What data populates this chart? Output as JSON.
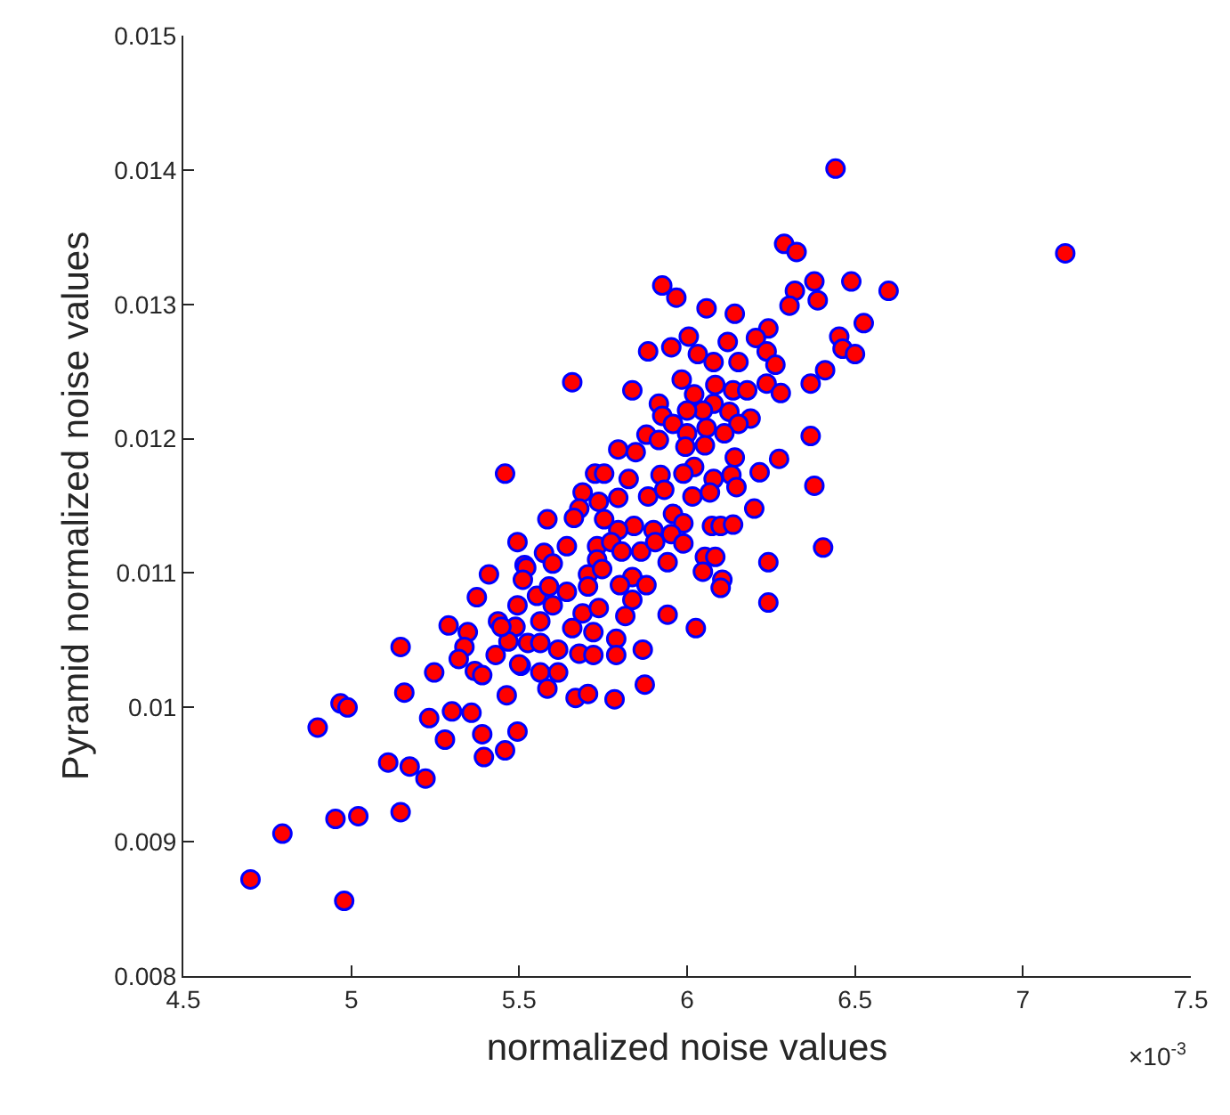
{
  "chart_data": {
    "type": "scatter",
    "xlabel": "normalized noise values",
    "ylabel": "Pyramid normalized noise values",
    "annotations": [
      "×10$^{-3}$"
    ],
    "xlim": [
      4.5,
      7.5
    ],
    "xticks": [
      4.5,
      5,
      5.5,
      6,
      6.5,
      7,
      7.5
    ],
    "ylim": [
      0.008,
      0.015
    ],
    "yticks": [
      0.008,
      0.009,
      0.01,
      0.011,
      0.012,
      0.013,
      0.014,
      0.015
    ],
    "marker": "circle",
    "series": [
      {
        "color": "#ff0000",
        "x": [
          5.458,
          5.495,
          5.41,
          5.374,
          5.29,
          5.347,
          5.337,
          5.147,
          5.32,
          5.247,
          5.368,
          5.39,
          5.43,
          5.158,
          5.463,
          4.968,
          4.989,
          4.9,
          5.232,
          5.3,
          5.358,
          5.279,
          5.39,
          5.395,
          5.458,
          5.495,
          5.11,
          5.174,
          5.221,
          5.147,
          5.021,
          4.953,
          4.795,
          4.7,
          4.979,
          5.437,
          5.489,
          5.468,
          5.505,
          5.516,
          5.495,
          6.289,
          6.326,
          5.926,
          5.968,
          6.058,
          6.142,
          6.379,
          6.321,
          6.389,
          6.305,
          6.242,
          6.205,
          6.121,
          6.005,
          5.953,
          5.884,
          6.032,
          6.079,
          6.153,
          6.237,
          6.263,
          6.453,
          6.463,
          6.411,
          6.368,
          5.658,
          5.837,
          5.984,
          6.084,
          6.137,
          6.179,
          6.237,
          6.279,
          6.021,
          6.079,
          5.916,
          6.047,
          6.126,
          6.189,
          5.926,
          6.0,
          5.958,
          6.058,
          6.153,
          5.879,
          5.916,
          6.0,
          6.111,
          6.053,
          5.995,
          5.795,
          5.847,
          6.368,
          6.142,
          6.274,
          6.021,
          5.826,
          5.726,
          5.753,
          5.921,
          5.989,
          6.079,
          6.132,
          6.216,
          6.147,
          6.379,
          5.689,
          5.795,
          5.884,
          5.932,
          6.016,
          6.068,
          5.679,
          5.737,
          5.584,
          5.663,
          5.753,
          5.842,
          5.958,
          5.989,
          6.2,
          5.795,
          5.9,
          5.953,
          6.074,
          6.1,
          6.137,
          5.642,
          5.732,
          5.774,
          5.863,
          5.905,
          5.989,
          6.405,
          5.574,
          5.732,
          5.805,
          6.053,
          6.084,
          5.521,
          5.6,
          5.705,
          5.747,
          5.837,
          5.879,
          5.942,
          6.047,
          6.105,
          6.242,
          5.511,
          5.553,
          5.589,
          5.642,
          5.705,
          5.8,
          5.837,
          6.1,
          6.242,
          5.6,
          5.689,
          5.737,
          5.816,
          5.942,
          6.026,
          5.447,
          5.563,
          5.658,
          5.721,
          5.526,
          5.616,
          5.679,
          5.789,
          5.868,
          5.563,
          5.721,
          5.789,
          5.5,
          5.563,
          5.616,
          5.584,
          5.874,
          5.668,
          5.705,
          5.784,
          6.442,
          7.126,
          6.489,
          6.6,
          6.526,
          6.5
        ],
        "values": [
          0.01174,
          0.01123,
          0.01099,
          0.01082,
          0.01061,
          0.01056,
          0.01045,
          0.01045,
          0.01036,
          0.01026,
          0.01027,
          0.01024,
          0.01039,
          0.01011,
          0.01009,
          0.01003,
          0.01,
          0.00985,
          0.00992,
          0.00997,
          0.00996,
          0.00976,
          0.0098,
          0.00963,
          0.00968,
          0.00982,
          0.00959,
          0.00956,
          0.00947,
          0.00922,
          0.00919,
          0.00917,
          0.00906,
          0.00872,
          0.00856,
          0.01064,
          0.0106,
          0.01049,
          0.01031,
          0.01106,
          0.01076,
          0.01345,
          0.01339,
          0.01314,
          0.01305,
          0.01297,
          0.01293,
          0.01317,
          0.0131,
          0.01303,
          0.01299,
          0.01282,
          0.01275,
          0.01272,
          0.01276,
          0.01268,
          0.01265,
          0.01263,
          0.01257,
          0.01257,
          0.01265,
          0.01255,
          0.01276,
          0.01267,
          0.01251,
          0.01241,
          0.01242,
          0.01236,
          0.01244,
          0.0124,
          0.01236,
          0.01236,
          0.01241,
          0.01234,
          0.01233,
          0.01226,
          0.01226,
          0.01221,
          0.0122,
          0.01215,
          0.01217,
          0.01221,
          0.01211,
          0.01208,
          0.01211,
          0.01203,
          0.01199,
          0.01204,
          0.01204,
          0.01195,
          0.01194,
          0.01192,
          0.0119,
          0.01202,
          0.01186,
          0.01185,
          0.01179,
          0.0117,
          0.01174,
          0.01174,
          0.01173,
          0.01174,
          0.0117,
          0.01173,
          0.01175,
          0.01164,
          0.01165,
          0.0116,
          0.01156,
          0.01157,
          0.01162,
          0.01157,
          0.0116,
          0.01148,
          0.01153,
          0.0114,
          0.01141,
          0.0114,
          0.01135,
          0.01144,
          0.01137,
          0.01148,
          0.01132,
          0.01132,
          0.01129,
          0.01135,
          0.01135,
          0.01136,
          0.0112,
          0.0112,
          0.01123,
          0.01116,
          0.01123,
          0.01122,
          0.01119,
          0.01115,
          0.0111,
          0.01116,
          0.01112,
          0.01112,
          0.01104,
          0.01107,
          0.01099,
          0.01103,
          0.01097,
          0.01091,
          0.01108,
          0.01101,
          0.01095,
          0.01108,
          0.01095,
          0.01083,
          0.0109,
          0.01086,
          0.0109,
          0.01091,
          0.0108,
          0.01089,
          0.01078,
          0.01076,
          0.0107,
          0.01074,
          0.01068,
          0.01069,
          0.01059,
          0.0106,
          0.01064,
          0.01059,
          0.01056,
          0.01048,
          0.01043,
          0.0104,
          0.01051,
          0.01043,
          0.01048,
          0.01039,
          0.01039,
          0.01032,
          0.01026,
          0.01026,
          0.01014,
          0.01017,
          0.01007,
          0.0101,
          0.01006,
          0.01401,
          0.01338,
          0.01317,
          0.0131,
          0.01286,
          0.01263
        ]
      }
    ]
  }
}
